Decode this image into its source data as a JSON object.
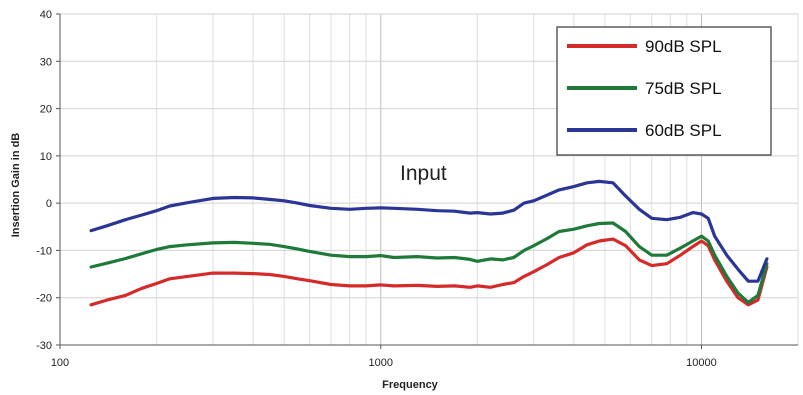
{
  "chart_data": {
    "type": "line",
    "title": "",
    "xlabel": "Frequency",
    "ylabel": "Insertion Gain in dB",
    "x_scale": "log",
    "xlim": [
      100,
      20000
    ],
    "ylim": [
      -30,
      40
    ],
    "x_ticks": [
      100,
      1000,
      10000
    ],
    "x_tick_labels": [
      "100",
      "1000",
      "10000"
    ],
    "y_ticks": [
      -30,
      -20,
      -10,
      0,
      10,
      20,
      30,
      40
    ],
    "y_tick_labels": [
      "-30",
      "-20",
      "-10",
      "0",
      "10",
      "20",
      "30",
      "40"
    ],
    "grid": true,
    "legend_position": "top-right",
    "annotation": "Input",
    "series": [
      {
        "name": "90dB SPL",
        "color": "#d42a2a",
        "points": [
          [
            125,
            -21.5
          ],
          [
            140,
            -20.5
          ],
          [
            160,
            -19.5
          ],
          [
            180,
            -18
          ],
          [
            200,
            -17
          ],
          [
            220,
            -16
          ],
          [
            250,
            -15.5
          ],
          [
            300,
            -14.8
          ],
          [
            350,
            -14.8
          ],
          [
            400,
            -14.9
          ],
          [
            450,
            -15.1
          ],
          [
            500,
            -15.5
          ],
          [
            550,
            -16
          ],
          [
            600,
            -16.4
          ],
          [
            700,
            -17.2
          ],
          [
            800,
            -17.5
          ],
          [
            900,
            -17.5
          ],
          [
            1000,
            -17.3
          ],
          [
            1100,
            -17.5
          ],
          [
            1300,
            -17.4
          ],
          [
            1500,
            -17.6
          ],
          [
            1700,
            -17.5
          ],
          [
            1900,
            -17.8
          ],
          [
            2000,
            -17.5
          ],
          [
            2200,
            -17.8
          ],
          [
            2400,
            -17.2
          ],
          [
            2600,
            -16.8
          ],
          [
            2800,
            -15.5
          ],
          [
            3000,
            -14.5
          ],
          [
            3300,
            -13
          ],
          [
            3600,
            -11.5
          ],
          [
            4000,
            -10.5
          ],
          [
            4400,
            -8.8
          ],
          [
            4800,
            -8
          ],
          [
            5300,
            -7.6
          ],
          [
            5800,
            -9
          ],
          [
            6400,
            -12
          ],
          [
            7000,
            -13.2
          ],
          [
            7800,
            -12.8
          ],
          [
            8600,
            -11
          ],
          [
            9400,
            -9.2
          ],
          [
            10000,
            -8
          ],
          [
            10500,
            -9
          ],
          [
            11000,
            -12
          ],
          [
            12000,
            -16.5
          ],
          [
            13000,
            -20
          ],
          [
            14000,
            -21.5
          ],
          [
            15000,
            -20.5
          ],
          [
            16000,
            -13.5
          ]
        ]
      },
      {
        "name": "75dB SPL",
        "color": "#1f7a3a",
        "points": [
          [
            125,
            -13.5
          ],
          [
            140,
            -12.7
          ],
          [
            160,
            -11.7
          ],
          [
            180,
            -10.7
          ],
          [
            200,
            -9.8
          ],
          [
            220,
            -9.2
          ],
          [
            250,
            -8.8
          ],
          [
            300,
            -8.4
          ],
          [
            350,
            -8.3
          ],
          [
            400,
            -8.5
          ],
          [
            450,
            -8.7
          ],
          [
            500,
            -9.2
          ],
          [
            550,
            -9.7
          ],
          [
            600,
            -10.2
          ],
          [
            700,
            -11
          ],
          [
            800,
            -11.3
          ],
          [
            900,
            -11.3
          ],
          [
            1000,
            -11.1
          ],
          [
            1100,
            -11.5
          ],
          [
            1300,
            -11.3
          ],
          [
            1500,
            -11.6
          ],
          [
            1700,
            -11.5
          ],
          [
            1900,
            -11.9
          ],
          [
            2000,
            -12.3
          ],
          [
            2200,
            -11.8
          ],
          [
            2400,
            -12
          ],
          [
            2600,
            -11.5
          ],
          [
            2800,
            -10
          ],
          [
            3000,
            -9
          ],
          [
            3300,
            -7.5
          ],
          [
            3600,
            -6
          ],
          [
            4000,
            -5.5
          ],
          [
            4400,
            -4.8
          ],
          [
            4800,
            -4.3
          ],
          [
            5300,
            -4.2
          ],
          [
            5800,
            -6
          ],
          [
            6400,
            -9.2
          ],
          [
            7000,
            -11
          ],
          [
            7800,
            -11
          ],
          [
            8600,
            -9.5
          ],
          [
            9400,
            -8
          ],
          [
            10000,
            -7
          ],
          [
            10500,
            -8
          ],
          [
            11000,
            -11
          ],
          [
            12000,
            -15.5
          ],
          [
            13000,
            -19
          ],
          [
            14000,
            -21
          ],
          [
            15000,
            -19.5
          ],
          [
            16000,
            -12.8
          ]
        ]
      },
      {
        "name": "60dB SPL",
        "color": "#2a3596",
        "points": [
          [
            125,
            -5.8
          ],
          [
            140,
            -4.8
          ],
          [
            160,
            -3.5
          ],
          [
            180,
            -2.5
          ],
          [
            200,
            -1.6
          ],
          [
            220,
            -0.6
          ],
          [
            250,
            0.1
          ],
          [
            300,
            1
          ],
          [
            350,
            1.2
          ],
          [
            400,
            1.1
          ],
          [
            450,
            0.8
          ],
          [
            500,
            0.5
          ],
          [
            550,
            0
          ],
          [
            600,
            -0.5
          ],
          [
            700,
            -1.1
          ],
          [
            800,
            -1.3
          ],
          [
            900,
            -1.1
          ],
          [
            1000,
            -1
          ],
          [
            1100,
            -1.1
          ],
          [
            1300,
            -1.3
          ],
          [
            1500,
            -1.6
          ],
          [
            1700,
            -1.7
          ],
          [
            1900,
            -2.1
          ],
          [
            2000,
            -2
          ],
          [
            2200,
            -2.3
          ],
          [
            2400,
            -2.1
          ],
          [
            2600,
            -1.5
          ],
          [
            2800,
            0
          ],
          [
            3000,
            0.5
          ],
          [
            3300,
            1.7
          ],
          [
            3600,
            2.8
          ],
          [
            4000,
            3.5
          ],
          [
            4400,
            4.3
          ],
          [
            4800,
            4.6
          ],
          [
            5300,
            4.3
          ],
          [
            5800,
            1.5
          ],
          [
            6400,
            -1.3
          ],
          [
            7000,
            -3.2
          ],
          [
            7800,
            -3.5
          ],
          [
            8600,
            -3
          ],
          [
            9400,
            -2
          ],
          [
            10000,
            -2.3
          ],
          [
            10500,
            -3.2
          ],
          [
            11000,
            -7
          ],
          [
            12000,
            -11
          ],
          [
            13000,
            -14
          ],
          [
            14000,
            -16.5
          ],
          [
            15000,
            -16.5
          ],
          [
            16000,
            -11.8
          ]
        ]
      }
    ]
  }
}
